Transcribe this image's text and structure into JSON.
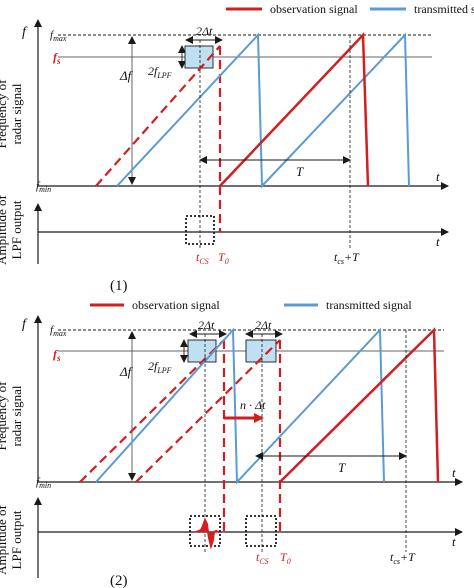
{
  "legend": {
    "observation": "observation signal",
    "transmitted": "transmitted signal"
  },
  "colors": {
    "observation": "#d21e1e",
    "transmitted": "#5b9bd5",
    "band_fill": "#bfe0f3",
    "axis": "#1a1a1a"
  },
  "panel1": {
    "caption": "(1)",
    "y_axis": "f",
    "x_axis": "t",
    "x_axis_lower": "t",
    "ylabel_upper_1": "Frequency of",
    "ylabel_upper_2": "radar signal",
    "ylabel_lower_1": "Amplitude of",
    "ylabel_lower_2": "LPF output",
    "f_max": "f",
    "f_max_sub": "max",
    "f_s": "f",
    "f_s_sub": "s",
    "f_min": "f",
    "f_min_sub": "min",
    "delta_f": "Δf",
    "two_f_lpf": "2f",
    "two_f_lpf_sub": "LPF",
    "delta_t": "2Δt",
    "period": "T",
    "t_cs": "t",
    "t_cs_sub": "CS",
    "t_0": "T",
    "t_0_sub": "0",
    "t_cs_T": "t",
    "t_cs_T_sub": "cs",
    "t_cs_T_suffix": "+T"
  },
  "panel2": {
    "caption": "(2)",
    "y_axis": "f",
    "x_axis": "t",
    "x_axis_lower": "t",
    "ylabel_upper_1": "Frequency of",
    "ylabel_upper_2": "radar signal",
    "ylabel_lower_1": "Amplitude of",
    "ylabel_lower_2": "LPF output",
    "f_max": "f",
    "f_max_sub": "max",
    "f_s": "f",
    "f_s_sub": "s",
    "f_min": "f",
    "f_min_sub": "min",
    "delta_f": "Δf",
    "two_f_lpf": "2f",
    "two_f_lpf_sub": "LPF",
    "delta_t_a": "2Δt",
    "delta_t_b": "2Δt",
    "shift": "n · Δt",
    "period": "T",
    "t_cs": "t",
    "t_cs_sub": "CS",
    "t_0": "T",
    "t_0_sub": "0",
    "t_cs_T": "t",
    "t_cs_T_sub": "cs",
    "t_cs_T_suffix": "+T"
  }
}
